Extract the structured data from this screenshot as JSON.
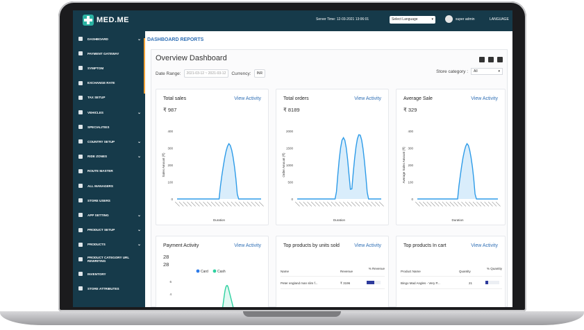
{
  "app": {
    "logo": "MED.ME",
    "server_time": "Server Time: 12-03-2021 13:06:01",
    "language_select": "Select Language",
    "user": "super admin",
    "language_menu": "LANGUAGE"
  },
  "sidebar": {
    "items": [
      {
        "label": "DASHBOARD",
        "chevron": true
      },
      {
        "label": "PAYMENT GATEWAY",
        "chevron": false
      },
      {
        "label": "SYMPTOM",
        "chevron": false
      },
      {
        "label": "EXCHANGE RATE",
        "chevron": false
      },
      {
        "label": "TAX SETUP",
        "chevron": false
      },
      {
        "label": "VEHICLES",
        "chevron": true
      },
      {
        "label": "SPECIALITIES",
        "chevron": false
      },
      {
        "label": "COUNTRY SETUP",
        "chevron": true
      },
      {
        "label": "RIDE ZONES",
        "chevron": true
      },
      {
        "label": "ROUTE MASTER",
        "chevron": false
      },
      {
        "label": "ALL MANAGERS",
        "chevron": false
      },
      {
        "label": "STORE USERS",
        "chevron": false
      },
      {
        "label": "APP SETTING",
        "chevron": true
      },
      {
        "label": "PRODUCT SETUP",
        "chevron": true
      },
      {
        "label": "PRODUCTS",
        "chevron": true
      },
      {
        "label": "PRODUCT CATEGORY URL REWRITING",
        "chevron": false
      },
      {
        "label": "INVENTORY",
        "chevron": false
      },
      {
        "label": "STORE ATTRIBUTES",
        "chevron": false
      }
    ]
  },
  "page": {
    "section_title": "DASHBOARD REPORTS",
    "title": "Overview Dashboard",
    "date_range_label": "Date Range:",
    "date_from": "2021-03-12",
    "date_sep": "~",
    "date_to": "2021-03-12",
    "currency_label": "Currency:",
    "currency_value": "INR",
    "store_category_label": "Store category :",
    "store_category_value": "All"
  },
  "cards": [
    {
      "title": "Total sales",
      "link": "View Activity",
      "value": "₹ 987"
    },
    {
      "title": "Total orders",
      "link": "View Activity",
      "value": "₹ 8189"
    },
    {
      "title": "Average Sale",
      "link": "View Activity",
      "value": "₹ 329"
    },
    {
      "title": "Payment Activity",
      "link": "View Activity",
      "value": "28",
      "value2": "28"
    },
    {
      "title": "Top products by units sold",
      "link": "View Activity"
    },
    {
      "title": "Top products In cart",
      "link": "View Activity"
    }
  ],
  "chart_data": [
    {
      "type": "area",
      "ylabel": "Sales Amount (₹)",
      "xlabel": "Duration",
      "ylim": [
        0,
        400
      ],
      "yticks": [
        0,
        100,
        200,
        300,
        400
      ],
      "peak": 330,
      "peaks": 1,
      "color": "#2d9be8"
    },
    {
      "type": "area",
      "ylabel": "Order Amount (₹)",
      "xlabel": "Duration",
      "ylim": [
        0,
        2000
      ],
      "yticks": [
        0,
        500,
        1000,
        1500,
        2000
      ],
      "peak": 1900,
      "peaks": 2,
      "color": "#2d9be8"
    },
    {
      "type": "area",
      "ylabel": "Average Sales Amount (₹)",
      "xlabel": "Duration",
      "ylim": [
        0,
        400
      ],
      "yticks": [
        0,
        100,
        200,
        300,
        400
      ],
      "peak": 330,
      "peaks": 1,
      "color": "#2d9be8"
    },
    {
      "type": "line",
      "legend": [
        "Card",
        "Cash"
      ],
      "legend_colors": [
        "#2d7be8",
        "#2ed1a0"
      ],
      "yticks": [
        2,
        4,
        6
      ]
    }
  ],
  "top_units": {
    "headers": [
      "Name",
      "Revenue",
      "% Revenue"
    ],
    "rows": [
      {
        "name": "Peter england man slim f...",
        "revenue": "₹ 3196",
        "pct": 0.55
      }
    ]
  },
  "top_cart": {
    "headers": [
      "Product Name",
      "Quantity",
      "% Quantity"
    ],
    "rows": [
      {
        "name": "Bingo Mad Angles - Very P...",
        "qty": "21",
        "pct": 0.2
      }
    ]
  }
}
